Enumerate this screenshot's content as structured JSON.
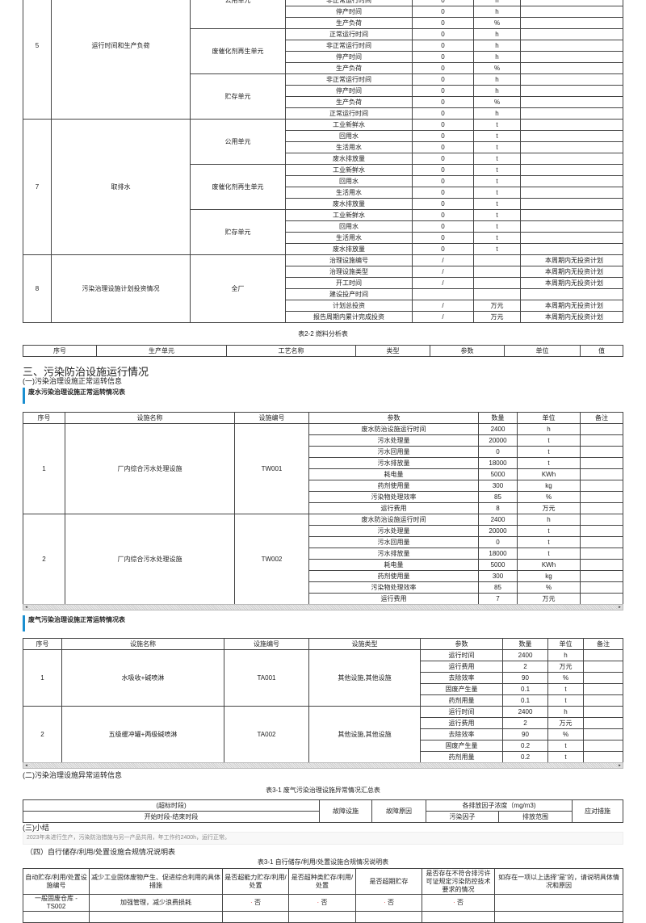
{
  "table_ops": {
    "sections": [
      {
        "no": "5",
        "name": "运行时间和生产负荷",
        "units": [
          {
            "unit": "公用单元",
            "rows": [
              [
                "非正常运行时间",
                "0",
                "h",
                ""
              ],
              [
                "停产时间",
                "0",
                "h",
                ""
              ],
              [
                "生产负荷",
                "0",
                "%",
                ""
              ]
            ]
          },
          {
            "unit": "废催化剂再生单元",
            "rows": [
              [
                "正常运行时间",
                "0",
                "h",
                ""
              ],
              [
                "非正常运行时间",
                "0",
                "h",
                ""
              ],
              [
                "停产时间",
                "0",
                "h",
                ""
              ],
              [
                "生产负荷",
                "0",
                "%",
                ""
              ]
            ]
          },
          {
            "unit": "贮存单元",
            "rows": [
              [
                "非正常运行时间",
                "0",
                "h",
                ""
              ],
              [
                "停产时间",
                "0",
                "h",
                ""
              ],
              [
                "生产负荷",
                "0",
                "%",
                ""
              ],
              [
                "正常运行时间",
                "0",
                "h",
                ""
              ]
            ]
          }
        ]
      },
      {
        "no": "7",
        "name": "取排水",
        "units": [
          {
            "unit": "公用单元",
            "rows": [
              [
                "工业新鲜水",
                "0",
                "t",
                ""
              ],
              [
                "回用水",
                "0",
                "t",
                ""
              ],
              [
                "生活用水",
                "0",
                "t",
                ""
              ],
              [
                "废水排放量",
                "0",
                "t",
                ""
              ]
            ]
          },
          {
            "unit": "废催化剂再生单元",
            "rows": [
              [
                "工业新鲜水",
                "0",
                "t",
                ""
              ],
              [
                "回用水",
                "0",
                "t",
                ""
              ],
              [
                "生活用水",
                "0",
                "t",
                ""
              ],
              [
                "废水排放量",
                "0",
                "t",
                ""
              ]
            ]
          },
          {
            "unit": "贮存单元",
            "rows": [
              [
                "工业新鲜水",
                "0",
                "t",
                ""
              ],
              [
                "回用水",
                "0",
                "t",
                ""
              ],
              [
                "生活用水",
                "0",
                "t",
                ""
              ],
              [
                "废水排放量",
                "0",
                "t",
                ""
              ]
            ]
          }
        ]
      },
      {
        "no": "8",
        "name": "污染治理设施计划投资情况",
        "units": [
          {
            "unit": "全厂",
            "rows": [
              [
                "治理设施编号",
                "/",
                "",
                "本周期内无投资计划"
              ],
              [
                "治理设施类型",
                "/",
                "",
                "本周期内无投资计划"
              ],
              [
                "开工时间",
                "/",
                "",
                "本周期内无投资计划"
              ],
              [
                "建设投产时间",
                "",
                "",
                ""
              ],
              [
                "计划总投资",
                "/",
                "万元",
                "本周期内无投资计划"
              ],
              [
                "报告周期内累计完成投资",
                "/",
                "万元",
                "本周期内无投资计划"
              ]
            ]
          }
        ]
      }
    ]
  },
  "fuel": {
    "caption": "表2-2 燃料分析表",
    "headers": [
      "序号",
      "生产单元",
      "工艺名称",
      "类型",
      "参数",
      "单位",
      "值"
    ]
  },
  "section3": {
    "title": "三、污染防治设施运行情况",
    "sub1": "(一)污染治理设施正常运转信息"
  },
  "wastewater": {
    "title": "废水污染治理设施正常运转情况表",
    "headers": [
      "序号",
      "设施名称",
      "设施编号",
      "参数",
      "数量",
      "单位",
      "备注"
    ],
    "groups": [
      {
        "no": "1",
        "name": "厂内综合污水处理设施",
        "code": "TW001",
        "rows": [
          [
            "废水防治设施运行时间",
            "2400",
            "h"
          ],
          [
            "污水处理量",
            "20000",
            "t"
          ],
          [
            "污水回用量",
            "0",
            "t"
          ],
          [
            "污水排放量",
            "18000",
            "t"
          ],
          [
            "耗电量",
            "5000",
            "KWh"
          ],
          [
            "药剂使用量",
            "300",
            "kg"
          ],
          [
            "污染物处理效率",
            "85",
            "%"
          ],
          [
            "运行费用",
            "8",
            "万元"
          ]
        ]
      },
      {
        "no": "2",
        "name": "厂内综合污水处理设施",
        "code": "TW002",
        "rows": [
          [
            "废水防治设施运行时间",
            "2400",
            "h"
          ],
          [
            "污水处理量",
            "20000",
            "t"
          ],
          [
            "污水回用量",
            "0",
            "t"
          ],
          [
            "污水排放量",
            "18000",
            "t"
          ],
          [
            "耗电量",
            "5000",
            "KWh"
          ],
          [
            "药剂使用量",
            "300",
            "kg"
          ],
          [
            "污染物处理效率",
            "85",
            "%"
          ],
          [
            "运行费用",
            "7",
            "万元"
          ]
        ]
      }
    ]
  },
  "wastegas": {
    "title": "废气污染治理设施正常运转情况表",
    "headers": [
      "序号",
      "设施名称",
      "设施编号",
      "设施类型",
      "参数",
      "数量",
      "单位",
      "备注"
    ],
    "groups": [
      {
        "no": "1",
        "name": "水吸收+碱喷淋",
        "code": "TA001",
        "type": "其他设施,其他设施",
        "rows": [
          [
            "运行时间",
            "2400",
            "h"
          ],
          [
            "运行费用",
            "2",
            "万元"
          ],
          [
            "去除效率",
            "90",
            "%"
          ],
          [
            "固废产生量",
            "0.1",
            "t"
          ],
          [
            "药剂用量",
            "0.1",
            "t"
          ]
        ]
      },
      {
        "no": "2",
        "name": "五级缓冲罐+两级碱喷淋",
        "code": "TA002",
        "type": "其他设施,其他设施",
        "rows": [
          [
            "运行时间",
            "2400",
            "h"
          ],
          [
            "运行费用",
            "2",
            "万元"
          ],
          [
            "去除效率",
            "90",
            "%"
          ],
          [
            "固废产生量",
            "0.2",
            "t"
          ],
          [
            "药剂用量",
            "0.2",
            "t"
          ]
        ]
      }
    ]
  },
  "abnormal": {
    "sub": "(二)污染治理设施异常运转信息",
    "caption": "表3-1 废气污染治理设施异常情况汇总表",
    "h_period": "(超标时段)",
    "h_range": "开始时段-结束时段",
    "h_facility": "故障设施",
    "h_reason": "故障原因",
    "h_conc": "各排放因子浓度（mg/m3)",
    "h_factor": "污染因子",
    "h_emit": "排放范围",
    "h_action": "应对措施"
  },
  "summary": {
    "sub": "(三)小结",
    "text": "2023年未进行生产，污染防治措施与另一产品共用，年工作约2400h，运行正常。"
  },
  "storage": {
    "sub": "（四）自行储存/利用/处置设施合规情况说明表",
    "caption": "表3-1 自行储存/利用/处置设施合规情况说明表",
    "headers": [
      "自动贮存/利用/处置设施编号",
      "减少工业固体废物产生、促进综合利用的具体措施",
      "是否超能力贮存/利用/处置",
      "是否超种类贮存/利用/处置",
      "是否超期贮存",
      "是否存在不符合排污许可证规定污染防控技术要求的情况",
      "如存在一项以上选择\"是\"的，请说明具体情况和原因"
    ],
    "rows": [
      [
        "一般固废仓库 - TS002",
        "加强管理，减少浪费损耗",
        "否",
        "否",
        "否",
        "否",
        ""
      ]
    ]
  }
}
